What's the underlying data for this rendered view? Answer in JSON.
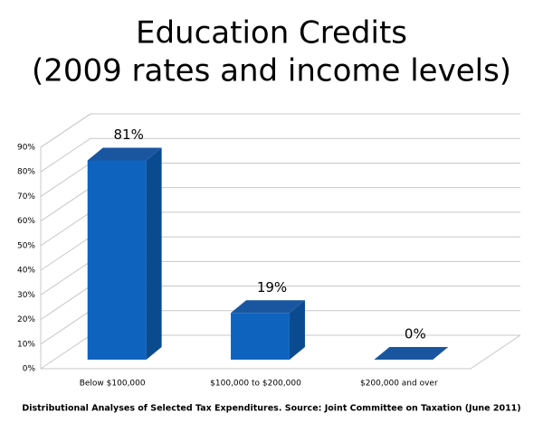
{
  "chart_data": {
    "type": "bar3d",
    "title": "Education Credits",
    "subtitle": "(2009 rates and income levels)",
    "categories": [
      "Below $100,000",
      "$100,000 to $200,000",
      "$200,000 and over"
    ],
    "values": [
      81,
      19,
      0
    ],
    "value_labels": [
      "81%",
      "19%",
      "0%"
    ],
    "color": "#0e63be",
    "ylim": [
      0,
      90
    ],
    "yticks": [
      {
        "value": 0,
        "label": "0%"
      },
      {
        "value": 10,
        "label": "10%"
      },
      {
        "value": 20,
        "label": "20%"
      },
      {
        "value": 30,
        "label": "30%"
      },
      {
        "value": 40,
        "label": "40%"
      },
      {
        "value": 50,
        "label": "50%"
      },
      {
        "value": 60,
        "label": "60%"
      },
      {
        "value": 70,
        "label": "70%"
      },
      {
        "value": 80,
        "label": "80%"
      },
      {
        "value": 90,
        "label": "90%"
      }
    ],
    "grid": true,
    "source": "Distributional Analyses of Selected Tax Expenditures. Source: Joint Committee on Taxation (June 2011)"
  }
}
